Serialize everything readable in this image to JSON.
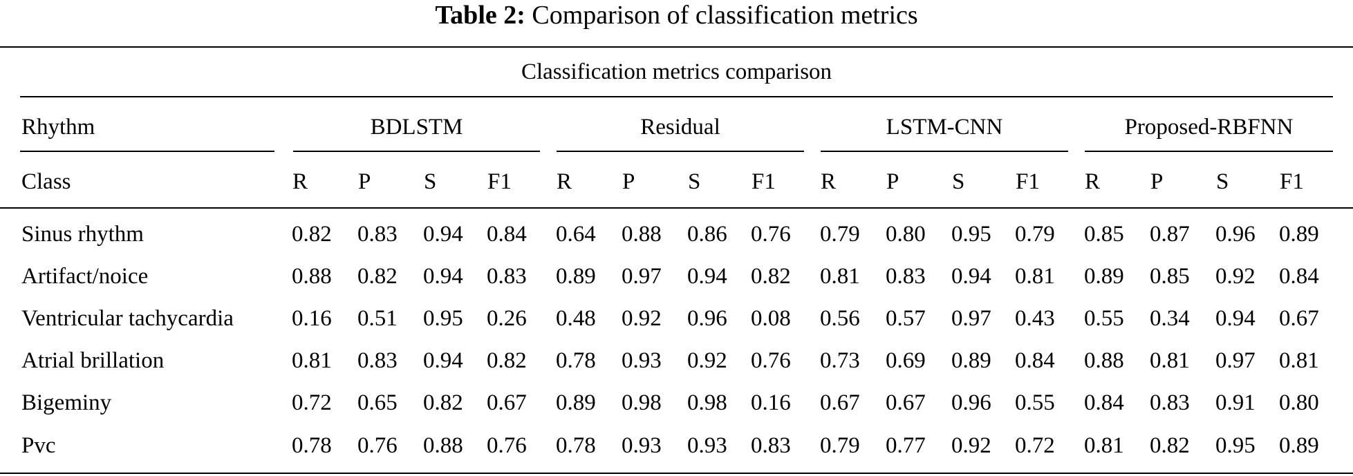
{
  "caption": {
    "label": "Table 2:",
    "text": "Comparison of classification metrics"
  },
  "table": {
    "super_header": "Classification metrics comparison",
    "row_header_1": "Rhythm",
    "row_header_2": "Class",
    "groups": [
      "BDLSTM",
      "Residual",
      "LSTM-CNN",
      "Proposed-RBFNN"
    ],
    "metrics": [
      "R",
      "P",
      "S",
      "F1"
    ],
    "rows": [
      {
        "label": "Sinus rhythm",
        "values": [
          "0.82",
          "0.83",
          "0.94",
          "0.84",
          "0.64",
          "0.88",
          "0.86",
          "0.76",
          "0.79",
          "0.80",
          "0.95",
          "0.79",
          "0.85",
          "0.87",
          "0.96",
          "0.89"
        ]
      },
      {
        "label": "Artifact/noice",
        "values": [
          "0.88",
          "0.82",
          "0.94",
          "0.83",
          "0.89",
          "0.97",
          "0.94",
          "0.82",
          "0.81",
          "0.83",
          "0.94",
          "0.81",
          "0.89",
          "0.85",
          "0.92",
          "0.84"
        ]
      },
      {
        "label": "Ventricular tachycardia",
        "values": [
          "0.16",
          "0.51",
          "0.95",
          "0.26",
          "0.48",
          "0.92",
          "0.96",
          "0.08",
          "0.56",
          "0.57",
          "0.97",
          "0.43",
          "0.55",
          "0.34",
          "0.94",
          "0.67"
        ]
      },
      {
        "label": "Atrial brillation",
        "values": [
          "0.81",
          "0.83",
          "0.94",
          "0.82",
          "0.78",
          "0.93",
          "0.92",
          "0.76",
          "0.73",
          "0.69",
          "0.89",
          "0.84",
          "0.88",
          "0.81",
          "0.97",
          "0.81"
        ]
      },
      {
        "label": "Bigeminy",
        "values": [
          "0.72",
          "0.65",
          "0.82",
          "0.67",
          "0.89",
          "0.98",
          "0.98",
          "0.16",
          "0.67",
          "0.67",
          "0.96",
          "0.55",
          "0.84",
          "0.83",
          "0.91",
          "0.80"
        ]
      },
      {
        "label": "Pvc",
        "values": [
          "0.78",
          "0.76",
          "0.88",
          "0.76",
          "0.78",
          "0.93",
          "0.93",
          "0.83",
          "0.79",
          "0.77",
          "0.92",
          "0.72",
          "0.81",
          "0.82",
          "0.95",
          "0.89"
        ]
      }
    ]
  }
}
